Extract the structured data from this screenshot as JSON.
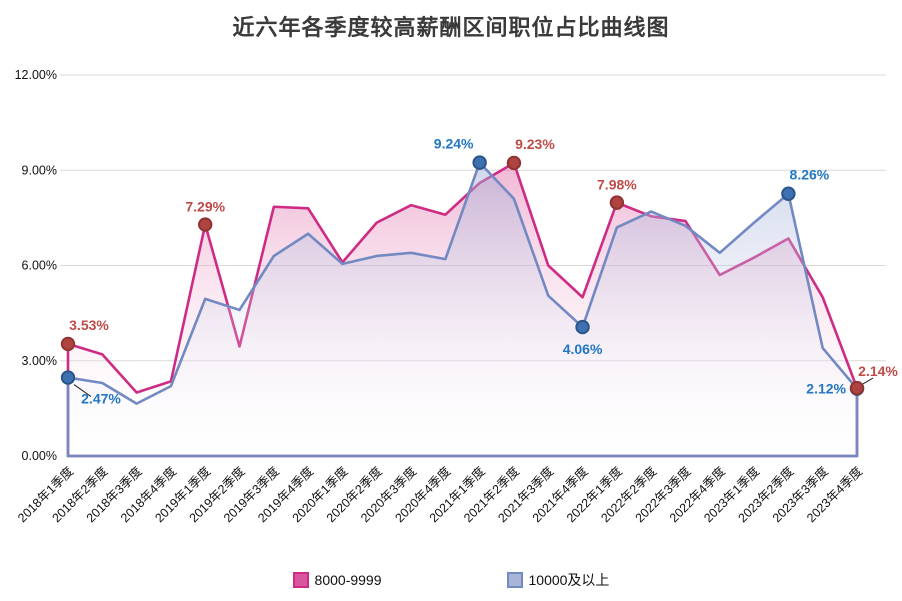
{
  "title": "近六年各季度较高薪酬区间职位占比曲线图",
  "chart_data": {
    "type": "area",
    "title": "近六年各季度较高薪酬区间职位占比曲线图",
    "xlabel": "",
    "ylabel": "",
    "ylim": [
      0,
      12
    ],
    "grid": "on",
    "legend_position": "bottom",
    "grid_color": "#d9d9d9",
    "leader_line_color": "#222222",
    "categories": [
      "2018年1季度",
      "2018年2季度",
      "2018年3季度",
      "2018年4季度",
      "2019年1季度",
      "2019年2季度",
      "2019年3季度",
      "2019年4季度",
      "2020年1季度",
      "2020年2季度",
      "2020年3季度",
      "2020年4季度",
      "2021年1季度",
      "2021年2季度",
      "2021年3季度",
      "2021年4季度",
      "2022年1季度",
      "2022年2季度",
      "2022年3季度",
      "2022年4季度",
      "2023年1季度",
      "2023年2季度",
      "2023年3季度",
      "2023年4季度"
    ],
    "y_ticks": [
      {
        "v": 0,
        "label": "0.00%"
      },
      {
        "v": 3,
        "label": "3.00%"
      },
      {
        "v": 6,
        "label": "6.00%"
      },
      {
        "v": 9,
        "label": "9.00%"
      },
      {
        "v": 12,
        "label": "12.00%"
      }
    ],
    "series": [
      {
        "name": "8000-9999",
        "values": [
          3.53,
          3.2,
          2.0,
          2.35,
          7.29,
          3.45,
          7.85,
          7.8,
          6.1,
          7.35,
          7.9,
          7.6,
          8.6,
          9.23,
          6.0,
          5.0,
          7.98,
          7.55,
          7.4,
          5.7,
          6.25,
          6.85,
          5.0,
          2.14
        ],
        "line_color": "#ce2b84",
        "fill_top": "rgba(214,62,141,0.62)",
        "fill_bottom": "rgba(255,255,255,0.04)",
        "swatch_fill": "#d8569e",
        "marker_fill": "#af4340",
        "marker_stroke": "#8e3431",
        "label_color": "#be4b48"
      },
      {
        "name": "10000及以上",
        "values": [
          2.47,
          2.3,
          1.65,
          2.2,
          4.95,
          4.6,
          6.3,
          7.0,
          6.05,
          6.3,
          6.4,
          6.2,
          9.24,
          8.1,
          5.05,
          4.06,
          7.2,
          7.7,
          7.25,
          6.4,
          7.35,
          8.26,
          3.4,
          2.12
        ],
        "line_color": "#7289c2",
        "fill_top": "rgba(130,148,202,0.62)",
        "fill_bottom": "rgba(255,255,255,0.04)",
        "swatch_fill": "#a9b4d8",
        "marker_fill": "#3d71b2",
        "marker_stroke": "#2b5589",
        "label_color": "#2276c3"
      }
    ],
    "point_labels": [
      {
        "series": 0,
        "index": 0,
        "text": "3.53%",
        "pos": "above-right"
      },
      {
        "series": 1,
        "index": 0,
        "text": "2.47%",
        "pos": "leader-below-right"
      },
      {
        "series": 0,
        "index": 4,
        "text": "7.29%",
        "pos": "above"
      },
      {
        "series": 1,
        "index": 12,
        "text": "9.24%",
        "pos": "above-left"
      },
      {
        "series": 0,
        "index": 13,
        "text": "9.23%",
        "pos": "above-right"
      },
      {
        "series": 1,
        "index": 15,
        "text": "4.06%",
        "pos": "below"
      },
      {
        "series": 0,
        "index": 16,
        "text": "7.98%",
        "pos": "above"
      },
      {
        "series": 1,
        "index": 21,
        "text": "8.26%",
        "pos": "above-right"
      },
      {
        "series": 1,
        "index": 23,
        "text": "2.12%",
        "pos": "left"
      },
      {
        "series": 0,
        "index": 23,
        "text": "2.14%",
        "pos": "leader-above-right"
      }
    ]
  }
}
